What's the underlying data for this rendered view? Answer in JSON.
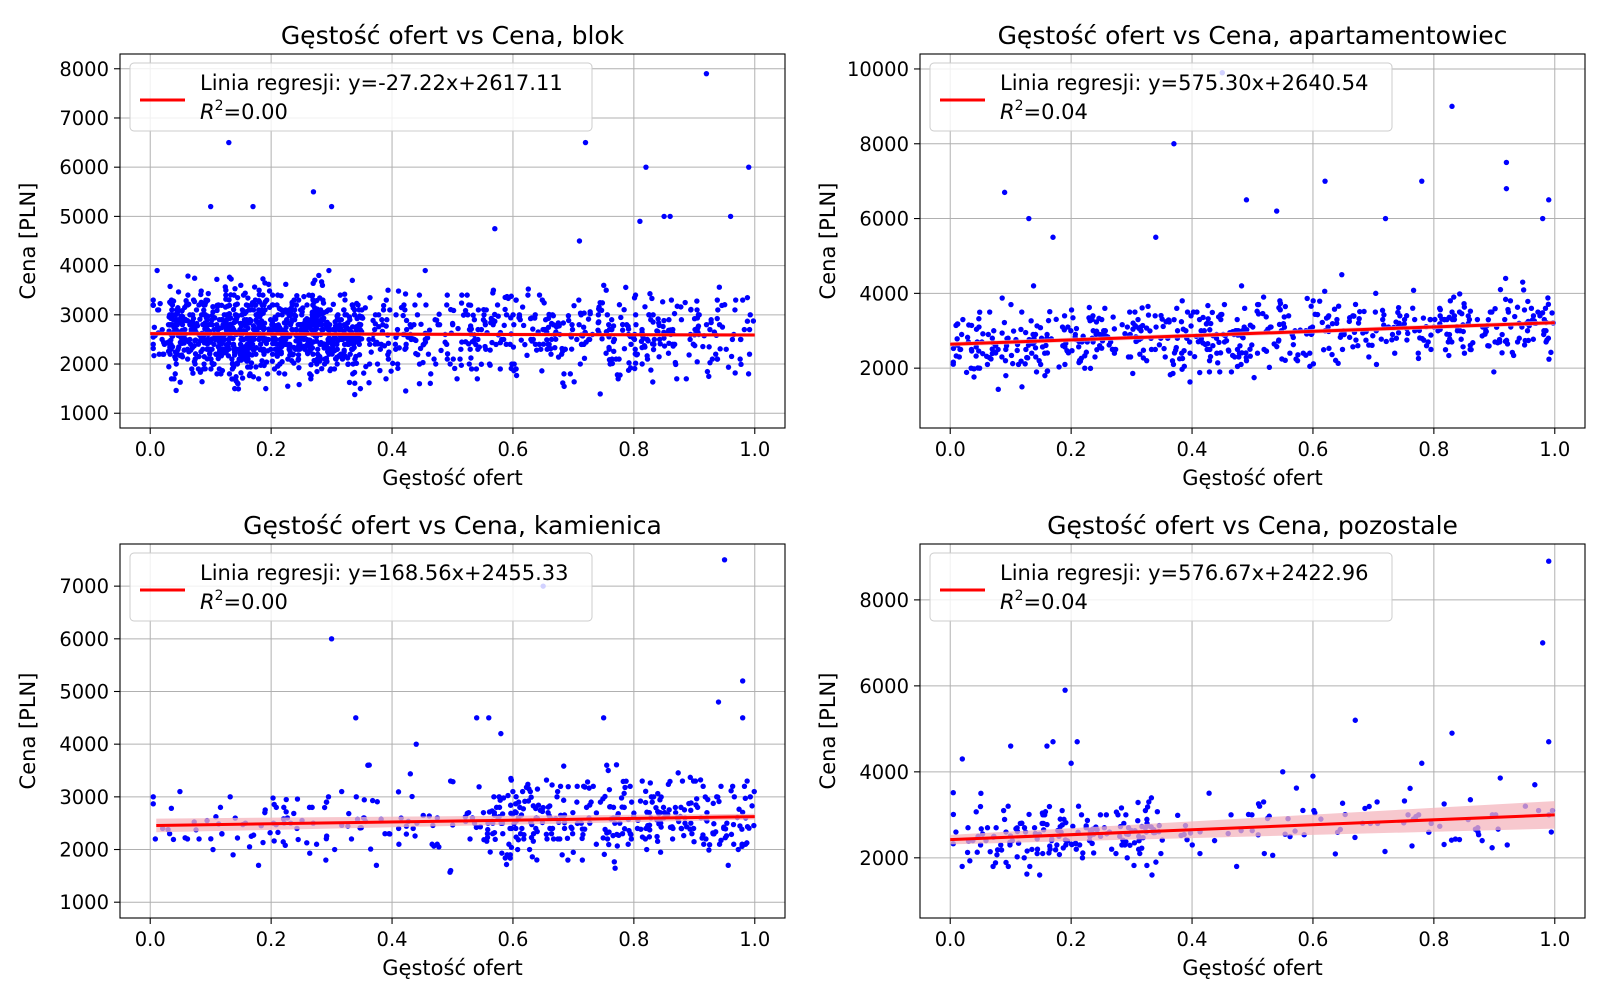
{
  "chart_data": [
    {
      "type": "scatter",
      "title": "Gęstość ofert vs Cena, blok",
      "xlabel": "Gęstość ofert",
      "ylabel": "Cena [PLN]",
      "xlim": [
        -0.05,
        1.05
      ],
      "ylim": [
        700,
        8300
      ],
      "xticks": [
        0.0,
        0.2,
        0.4,
        0.6,
        0.8,
        1.0
      ],
      "yticks": [
        1000,
        2000,
        3000,
        4000,
        5000,
        6000,
        7000,
        8000
      ],
      "grid": true,
      "legend_position": "top-left",
      "legend_line1": "Linia regresji: y=-27.22x+2617.11",
      "legend_r2_value": "=0.00",
      "regression": {
        "slope": -27.22,
        "intercept": 2617.11,
        "x_range": [
          0.0,
          1.0
        ],
        "ci_half_width": [
          40,
          35
        ]
      },
      "point_color": "#0000ff",
      "line_color": "#ff0000",
      "band_color": "#f4b6bd",
      "n_points": 1500,
      "seed": 101,
      "y_spread": 680,
      "y_min": 1000,
      "y_max": 5600,
      "x_density": "left-heavy",
      "outliers": [
        [
          0.92,
          7900
        ],
        [
          0.72,
          6500
        ],
        [
          0.13,
          6500
        ],
        [
          0.82,
          6000
        ],
        [
          0.99,
          6000
        ],
        [
          0.27,
          5500
        ],
        [
          0.3,
          5200
        ],
        [
          0.1,
          5200
        ],
        [
          0.17,
          5200
        ],
        [
          0.57,
          4750
        ],
        [
          0.71,
          4500
        ],
        [
          0.96,
          5000
        ],
        [
          0.86,
          5000
        ],
        [
          0.85,
          5000
        ],
        [
          0.81,
          4900
        ]
      ]
    },
    {
      "type": "scatter",
      "title": "Gęstość ofert vs Cena, apartamentowiec",
      "xlabel": "Gęstość ofert",
      "ylabel": "Cena [PLN]",
      "xlim": [
        -0.05,
        1.05
      ],
      "ylim": [
        400,
        10400
      ],
      "xticks": [
        0.0,
        0.2,
        0.4,
        0.6,
        0.8,
        1.0
      ],
      "yticks": [
        2000,
        4000,
        6000,
        8000,
        10000
      ],
      "grid": true,
      "legend_position": "top-left",
      "legend_line1": "Linia regresji: y=575.30x+2640.54",
      "legend_r2_value": "=0.04",
      "regression": {
        "slope": 575.3,
        "intercept": 2640.54,
        "x_range": [
          0.0,
          1.0
        ],
        "ci_half_width": [
          60,
          60
        ]
      },
      "point_color": "#0000ff",
      "line_color": "#ff0000",
      "band_color": "#f4b6bd",
      "n_points": 620,
      "seed": 202,
      "y_spread": 750,
      "y_min": 1000,
      "y_max": 7600,
      "x_density": "uniform",
      "outliers": [
        [
          0.45,
          9900
        ],
        [
          0.83,
          9000
        ],
        [
          0.37,
          8000
        ],
        [
          0.92,
          7500
        ],
        [
          0.78,
          7000
        ],
        [
          0.62,
          7000
        ],
        [
          0.09,
          6700
        ],
        [
          0.92,
          6800
        ],
        [
          0.49,
          6500
        ],
        [
          0.54,
          6200
        ],
        [
          0.13,
          6000
        ],
        [
          0.98,
          6000
        ],
        [
          0.72,
          6000
        ],
        [
          0.99,
          6500
        ],
        [
          0.17,
          5500
        ],
        [
          0.34,
          5500
        ]
      ]
    },
    {
      "type": "scatter",
      "title": "Gęstość ofert vs Cena, kamienica",
      "xlabel": "Gęstość ofert",
      "ylabel": "Cena [PLN]",
      "xlim": [
        -0.05,
        1.05
      ],
      "ylim": [
        700,
        7800
      ],
      "xticks": [
        0.0,
        0.2,
        0.4,
        0.6,
        0.8,
        1.0
      ],
      "yticks": [
        1000,
        2000,
        3000,
        4000,
        5000,
        6000,
        7000
      ],
      "grid": true,
      "legend_position": "top-left",
      "legend_line1": "Linia regresji: y=168.56x+2455.33",
      "legend_r2_value": "=0.00",
      "regression": {
        "slope": 168.56,
        "intercept": 2455.33,
        "x_range": [
          0.01,
          1.0
        ],
        "ci_half_width": [
          130,
          55
        ]
      },
      "point_color": "#0000ff",
      "line_color": "#ff0000",
      "band_color": "#f4b6bd",
      "n_points": 470,
      "seed": 303,
      "y_spread": 600,
      "y_min": 1000,
      "y_max": 5200,
      "x_density": "right-heavy",
      "outliers": [
        [
          0.95,
          7500
        ],
        [
          0.65,
          7000
        ],
        [
          0.3,
          6000
        ],
        [
          0.98,
          5200
        ],
        [
          0.94,
          4800
        ],
        [
          0.34,
          4500
        ],
        [
          0.54,
          4500
        ],
        [
          0.56,
          4500
        ],
        [
          0.75,
          4500
        ],
        [
          0.98,
          4500
        ],
        [
          0.44,
          4000
        ],
        [
          0.58,
          4200
        ],
        [
          0.36,
          3600
        ]
      ]
    },
    {
      "type": "scatter",
      "title": "Gęstość ofert vs Cena, pozostale",
      "xlabel": "Gęstość ofert",
      "ylabel": "Cena [PLN]",
      "xlim": [
        -0.05,
        1.05
      ],
      "ylim": [
        600,
        9300
      ],
      "xticks": [
        0.0,
        0.2,
        0.4,
        0.6,
        0.8,
        1.0
      ],
      "yticks": [
        2000,
        4000,
        6000,
        8000
      ],
      "grid": true,
      "legend_position": "top-left",
      "legend_line1": "Linia regresji: y=576.67x+2422.96",
      "legend_r2_value": "=0.04",
      "regression": {
        "slope": 576.67,
        "intercept": 2422.96,
        "x_range": [
          0.0,
          1.0
        ],
        "ci_half_width": [
          110,
          320
        ]
      },
      "point_color": "#0000ff",
      "line_color": "#ff0000",
      "band_color": "#f4b6bd",
      "n_points": 260,
      "seed": 404,
      "y_spread": 650,
      "y_min": 1000,
      "y_max": 4700,
      "x_density": "left-heavy",
      "outliers": [
        [
          0.99,
          8900
        ],
        [
          0.98,
          7000
        ],
        [
          0.19,
          5900
        ],
        [
          0.67,
          5200
        ],
        [
          0.99,
          4700
        ],
        [
          0.17,
          4700
        ],
        [
          0.21,
          4700
        ],
        [
          0.83,
          4900
        ],
        [
          0.02,
          4300
        ],
        [
          0.2,
          4200
        ],
        [
          0.1,
          4600
        ],
        [
          0.16,
          4600
        ],
        [
          0.78,
          4200
        ],
        [
          0.55,
          4000
        ],
        [
          0.6,
          3900
        ]
      ]
    }
  ]
}
